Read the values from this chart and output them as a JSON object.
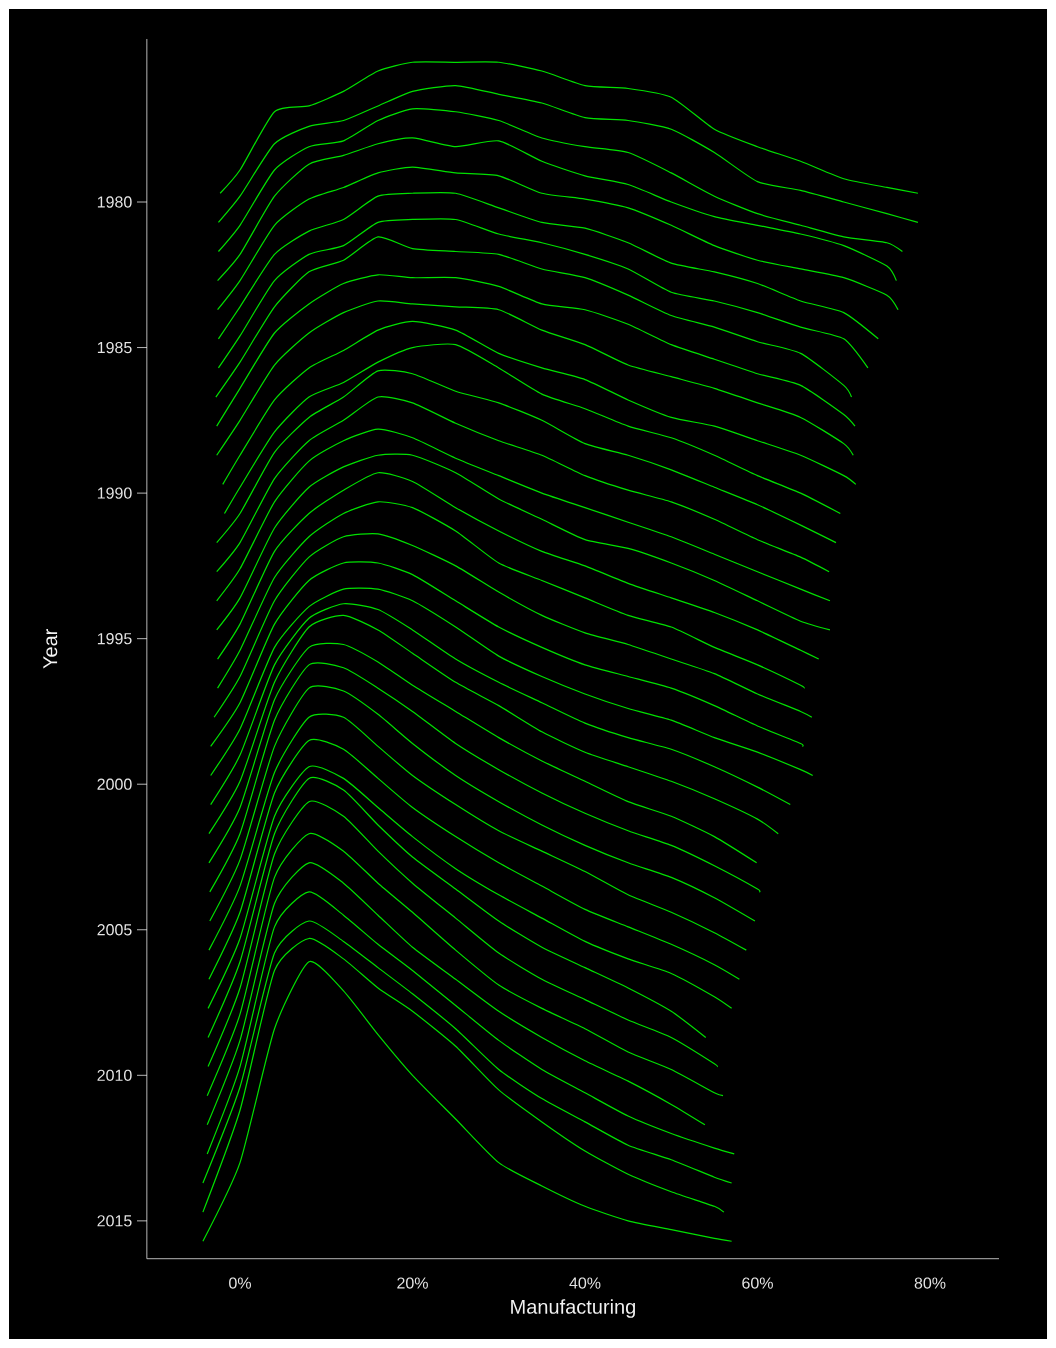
{
  "chart_data": {
    "type": "line",
    "xlabel": "Manufacturing",
    "ylabel": "Year",
    "xticks": [
      {
        "value": 0,
        "label": "0%"
      },
      {
        "value": 20,
        "label": "20%"
      },
      {
        "value": 40,
        "label": "40%"
      },
      {
        "value": 60,
        "label": "60%"
      },
      {
        "value": 80,
        "label": "80%"
      }
    ],
    "yticks": [
      1980,
      1985,
      1990,
      1995,
      2000,
      2005,
      2010,
      2015
    ],
    "xlim": [
      -10.8,
      88
    ],
    "ylim": [
      2016.3,
      1974.4
    ],
    "series": [
      {
        "color": "#00e000",
        "x": [
          -2.3,
          0,
          4,
          8,
          12,
          16,
          20,
          25,
          30,
          35,
          40,
          45,
          50,
          55,
          60,
          65,
          70,
          75,
          78.6
        ],
        "values": [
          1979.7,
          1978.9,
          1976.9,
          1976.7,
          1976.2,
          1975.5,
          1975.2,
          1975.2,
          1975.2,
          1975.5,
          1976.0,
          1976.1,
          1976.4,
          1977.5,
          1978.1,
          1978.6,
          1979.2,
          1979.5,
          1979.7
        ]
      },
      {
        "color": "#00e000",
        "x": [
          -2.5,
          0,
          4,
          8,
          12,
          16,
          20,
          25,
          30,
          35,
          40,
          45,
          50,
          55,
          60,
          65,
          70,
          75,
          78.6
        ],
        "values": [
          1980.7,
          1979.8,
          1978.0,
          1977.4,
          1977.2,
          1976.7,
          1976.2,
          1976.0,
          1976.3,
          1976.6,
          1977.1,
          1977.2,
          1977.5,
          1978.3,
          1979.3,
          1979.6,
          1980.0,
          1980.4,
          1980.7
        ]
      },
      {
        "color": "#00e000",
        "x": [
          -2.5,
          0,
          4,
          8,
          12,
          16,
          20,
          25,
          30,
          35,
          40,
          45,
          50,
          55,
          60,
          65,
          70,
          75,
          76.8
        ],
        "values": [
          1981.7,
          1980.8,
          1978.9,
          1978.1,
          1977.9,
          1977.2,
          1976.8,
          1976.9,
          1977.2,
          1977.8,
          1978.1,
          1978.3,
          1979.0,
          1979.8,
          1980.4,
          1980.8,
          1981.2,
          1981.4,
          1981.7
        ]
      },
      {
        "color": "#00e000",
        "x": [
          -2.6,
          0,
          4,
          8,
          12,
          16,
          20,
          25,
          30,
          35,
          40,
          45,
          50,
          55,
          60,
          65,
          70,
          75,
          76.1
        ],
        "values": [
          1982.7,
          1981.8,
          1979.8,
          1978.7,
          1978.4,
          1978.0,
          1977.8,
          1978.1,
          1977.9,
          1978.6,
          1979.1,
          1979.4,
          1980.0,
          1980.5,
          1980.8,
          1981.1,
          1981.5,
          1982.2,
          1982.7
        ]
      },
      {
        "color": "#00e000",
        "x": [
          -2.6,
          0,
          4,
          8,
          12,
          16,
          20,
          25,
          30,
          35,
          40,
          45,
          50,
          55,
          60,
          65,
          70,
          75,
          76.3
        ],
        "values": [
          1983.7,
          1982.7,
          1980.8,
          1979.9,
          1979.5,
          1979.0,
          1978.8,
          1979.0,
          1979.1,
          1979.7,
          1979.9,
          1980.2,
          1980.8,
          1981.5,
          1982.0,
          1982.3,
          1982.6,
          1983.2,
          1983.7
        ]
      },
      {
        "color": "#00e000",
        "x": [
          -2.5,
          0,
          4,
          8,
          12,
          16,
          20,
          25,
          30,
          35,
          40,
          45,
          50,
          55,
          60,
          65,
          70,
          74.0
        ],
        "values": [
          1984.7,
          1983.6,
          1981.8,
          1981.0,
          1980.6,
          1979.8,
          1979.7,
          1979.7,
          1980.2,
          1980.7,
          1980.9,
          1981.4,
          1982.1,
          1982.4,
          1982.8,
          1983.4,
          1983.8,
          1984.7
        ]
      },
      {
        "color": "#00e000",
        "x": [
          -2.5,
          0,
          4,
          8,
          12,
          16,
          20,
          25,
          30,
          35,
          40,
          45,
          50,
          55,
          60,
          65,
          70,
          72.8
        ],
        "values": [
          1985.7,
          1984.6,
          1982.7,
          1981.8,
          1981.5,
          1980.7,
          1980.6,
          1980.6,
          1981.1,
          1981.4,
          1981.8,
          1982.3,
          1983.1,
          1983.4,
          1983.8,
          1984.3,
          1984.7,
          1985.7
        ]
      },
      {
        "color": "#00e000",
        "x": [
          -2.8,
          0,
          4,
          8,
          12,
          16,
          20,
          25,
          30,
          35,
          40,
          45,
          50,
          55,
          60,
          65,
          70,
          70.9
        ],
        "values": [
          1986.7,
          1985.5,
          1983.6,
          1982.4,
          1982.0,
          1981.2,
          1981.6,
          1981.7,
          1981.8,
          1982.3,
          1982.6,
          1983.2,
          1983.9,
          1984.3,
          1984.8,
          1985.2,
          1986.3,
          1986.7
        ]
      },
      {
        "color": "#00e000",
        "x": [
          -2.7,
          0,
          4,
          8,
          12,
          16,
          20,
          25,
          30,
          35,
          40,
          45,
          50,
          55,
          60,
          65,
          70,
          71.3
        ],
        "values": [
          1987.7,
          1986.4,
          1984.5,
          1983.5,
          1982.8,
          1982.5,
          1982.6,
          1982.6,
          1982.9,
          1983.5,
          1983.7,
          1984.2,
          1984.9,
          1985.4,
          1985.9,
          1986.3,
          1987.3,
          1987.7
        ]
      },
      {
        "color": "#00e000",
        "x": [
          -2.7,
          0,
          4,
          8,
          12,
          16,
          20,
          25,
          30,
          35,
          40,
          45,
          50,
          55,
          60,
          65,
          70,
          71.1
        ],
        "values": [
          1988.7,
          1987.5,
          1985.6,
          1984.5,
          1983.8,
          1983.4,
          1983.5,
          1983.6,
          1983.7,
          1984.4,
          1984.9,
          1985.6,
          1986.0,
          1986.4,
          1986.9,
          1987.4,
          1988.3,
          1988.7
        ]
      },
      {
        "color": "#00e000",
        "x": [
          -2.0,
          0,
          4,
          8,
          12,
          16,
          20,
          25,
          30,
          35,
          40,
          45,
          50,
          55,
          60,
          65,
          70,
          71.4
        ],
        "values": [
          1989.7,
          1988.7,
          1986.8,
          1985.7,
          1985.1,
          1984.4,
          1984.1,
          1984.4,
          1985.2,
          1985.7,
          1986.1,
          1986.8,
          1987.4,
          1987.7,
          1988.2,
          1988.7,
          1989.4,
          1989.7
        ]
      },
      {
        "color": "#00e000",
        "x": [
          -1.8,
          0,
          4,
          8,
          12,
          16,
          20,
          25,
          30,
          35,
          40,
          45,
          50,
          55,
          60,
          65,
          69.6
        ],
        "values": [
          1990.7,
          1989.8,
          1987.9,
          1986.7,
          1986.2,
          1985.5,
          1985.0,
          1984.9,
          1985.7,
          1986.6,
          1987.1,
          1987.7,
          1988.1,
          1988.7,
          1989.4,
          1990.0,
          1990.7
        ]
      },
      {
        "color": "#00e000",
        "x": [
          -2.7,
          0,
          4,
          8,
          12,
          16,
          20,
          25,
          30,
          35,
          40,
          45,
          50,
          55,
          60,
          65,
          69.1
        ],
        "values": [
          1991.7,
          1990.7,
          1988.6,
          1987.4,
          1986.7,
          1985.8,
          1985.9,
          1986.5,
          1986.9,
          1987.5,
          1988.3,
          1988.7,
          1989.2,
          1989.8,
          1990.4,
          1991.1,
          1991.7
        ]
      },
      {
        "color": "#00e000",
        "x": [
          -2.7,
          0,
          4,
          8,
          12,
          16,
          20,
          25,
          30,
          35,
          40,
          45,
          50,
          55,
          60,
          65,
          68.3
        ],
        "values": [
          1992.7,
          1991.7,
          1989.5,
          1988.2,
          1987.5,
          1986.7,
          1986.9,
          1987.6,
          1988.2,
          1988.7,
          1989.4,
          1989.9,
          1990.3,
          1990.9,
          1991.6,
          1992.2,
          1992.7
        ]
      },
      {
        "color": "#00e000",
        "x": [
          -2.7,
          0,
          4,
          8,
          12,
          16,
          20,
          25,
          30,
          35,
          40,
          45,
          50,
          55,
          60,
          65,
          68.4
        ],
        "values": [
          1993.7,
          1992.6,
          1990.3,
          1988.9,
          1988.2,
          1987.8,
          1988.1,
          1988.8,
          1989.4,
          1990.0,
          1990.5,
          1991.0,
          1991.5,
          1992.1,
          1992.7,
          1993.3,
          1993.7
        ]
      },
      {
        "color": "#00e000",
        "x": [
          -2.7,
          0,
          4,
          8,
          12,
          16,
          20,
          25,
          30,
          35,
          40,
          45,
          50,
          55,
          60,
          65,
          68.4
        ],
        "values": [
          1994.7,
          1993.6,
          1991.2,
          1989.8,
          1989.1,
          1988.7,
          1988.7,
          1989.3,
          1990.2,
          1990.9,
          1991.6,
          1991.9,
          1992.4,
          1993.0,
          1993.7,
          1994.4,
          1994.7
        ]
      },
      {
        "color": "#00e000",
        "x": [
          -2.6,
          0,
          4,
          8,
          12,
          16,
          20,
          25,
          30,
          35,
          40,
          45,
          50,
          55,
          60,
          65,
          67.1
        ],
        "values": [
          1995.7,
          1994.5,
          1992.0,
          1990.7,
          1989.9,
          1989.3,
          1989.6,
          1990.5,
          1991.3,
          1992.0,
          1992.5,
          1993.1,
          1993.6,
          1994.1,
          1994.7,
          1995.4,
          1995.7
        ]
      },
      {
        "color": "#00e000",
        "x": [
          -2.6,
          0,
          4,
          8,
          12,
          16,
          20,
          25,
          30,
          35,
          40,
          45,
          50,
          55,
          60,
          65,
          65.4
        ],
        "values": [
          1996.7,
          1995.4,
          1992.9,
          1991.5,
          1990.7,
          1990.3,
          1990.5,
          1991.3,
          1992.4,
          1993.0,
          1993.6,
          1994.2,
          1994.6,
          1995.3,
          1995.9,
          1996.6,
          1996.7
        ]
      },
      {
        "color": "#00e000",
        "x": [
          -3.0,
          0,
          4,
          8,
          12,
          16,
          20,
          25,
          30,
          35,
          40,
          45,
          50,
          55,
          60,
          65,
          66.3
        ],
        "values": [
          1997.7,
          1996.3,
          1993.7,
          1992.2,
          1991.5,
          1991.4,
          1991.8,
          1992.5,
          1993.4,
          1994.2,
          1994.8,
          1995.2,
          1995.7,
          1996.2,
          1996.9,
          1997.5,
          1997.7
        ]
      },
      {
        "color": "#00e000",
        "x": [
          -3.4,
          0,
          4,
          8,
          12,
          16,
          20,
          25,
          30,
          35,
          40,
          45,
          50,
          55,
          60,
          65,
          65.2
        ],
        "values": [
          1998.7,
          1997.2,
          1994.5,
          1993.0,
          1992.4,
          1992.4,
          1992.8,
          1993.7,
          1994.6,
          1995.3,
          1995.9,
          1996.3,
          1996.7,
          1997.3,
          1998.0,
          1998.6,
          1998.7
        ]
      },
      {
        "color": "#00e000",
        "x": [
          -3.4,
          0,
          4,
          8,
          12,
          16,
          20,
          25,
          30,
          35,
          40,
          45,
          50,
          55,
          60,
          65,
          66.4
        ],
        "values": [
          1999.7,
          1998.1,
          1995.3,
          1993.9,
          1993.3,
          1993.3,
          1993.7,
          1994.6,
          1995.6,
          1996.3,
          1996.9,
          1997.4,
          1997.8,
          1998.4,
          1998.9,
          1999.5,
          1999.7
        ]
      },
      {
        "color": "#00e000",
        "x": [
          -3.4,
          0,
          4,
          8,
          12,
          16,
          20,
          25,
          30,
          35,
          40,
          45,
          50,
          55,
          60,
          63.8
        ],
        "values": [
          2000.7,
          1999.0,
          1995.9,
          1994.3,
          1993.8,
          1994.0,
          1994.7,
          1995.7,
          1996.5,
          1997.2,
          1997.9,
          1998.4,
          1998.8,
          1999.4,
          2000.1,
          2000.7
        ]
      },
      {
        "color": "#00e000",
        "x": [
          -3.6,
          0,
          4,
          8,
          12,
          16,
          20,
          25,
          30,
          35,
          40,
          45,
          50,
          55,
          60,
          62.4
        ],
        "values": [
          2001.7,
          1999.9,
          1996.5,
          1994.6,
          1994.2,
          1994.7,
          1995.5,
          1996.5,
          1997.3,
          1998.2,
          1998.9,
          1999.4,
          1999.9,
          2000.5,
          2001.2,
          2001.7
        ]
      },
      {
        "color": "#00e000",
        "x": [
          -3.6,
          0,
          4,
          8,
          12,
          16,
          20,
          25,
          30,
          35,
          40,
          45,
          50,
          55,
          59.9
        ],
        "values": [
          2002.7,
          2000.8,
          1997.1,
          1995.3,
          1995.2,
          1995.8,
          1996.6,
          1997.5,
          1998.4,
          1999.2,
          1999.9,
          2000.6,
          2001.1,
          2001.8,
          2002.7
        ]
      },
      {
        "color": "#00e000",
        "x": [
          -3.5,
          0,
          4,
          8,
          12,
          16,
          20,
          25,
          30,
          35,
          40,
          45,
          50,
          55,
          60,
          60.2
        ],
        "values": [
          2003.7,
          2001.7,
          1997.8,
          1995.9,
          1996.0,
          1996.7,
          1997.5,
          1998.6,
          1999.5,
          2000.3,
          2001.0,
          2001.6,
          2002.1,
          2002.8,
          2003.6,
          2003.7
        ]
      },
      {
        "color": "#00e000",
        "x": [
          -3.5,
          0,
          4,
          8,
          12,
          16,
          20,
          25,
          30,
          35,
          40,
          45,
          50,
          55,
          59.7
        ],
        "values": [
          2004.7,
          2002.6,
          1998.7,
          1996.7,
          1996.8,
          1997.6,
          1998.6,
          1999.7,
          2000.6,
          2001.4,
          2002.1,
          2002.7,
          2003.2,
          2003.9,
          2004.7
        ]
      },
      {
        "color": "#00e000",
        "x": [
          -3.6,
          0,
          4,
          8,
          12,
          16,
          20,
          25,
          30,
          35,
          40,
          45,
          50,
          55,
          58.7
        ],
        "values": [
          2005.7,
          2003.5,
          1999.6,
          1997.7,
          1997.7,
          1998.7,
          1999.7,
          2000.7,
          2001.6,
          2002.3,
          2003.0,
          2003.8,
          2004.4,
          2005.1,
          2005.7
        ]
      },
      {
        "color": "#00e000",
        "x": [
          -3.6,
          0,
          4,
          8,
          12,
          16,
          20,
          25,
          30,
          35,
          40,
          45,
          50,
          55,
          57.9
        ],
        "values": [
          2006.7,
          2004.4,
          2000.3,
          1998.5,
          1998.8,
          1999.8,
          2000.8,
          2001.8,
          2002.7,
          2003.5,
          2004.3,
          2004.9,
          2005.5,
          2006.2,
          2006.7
        ]
      },
      {
        "color": "#00e000",
        "x": [
          -3.7,
          0,
          4,
          8,
          12,
          16,
          20,
          25,
          30,
          35,
          40,
          45,
          50,
          55,
          57.0
        ],
        "values": [
          2007.7,
          2005.3,
          2001.1,
          1999.4,
          1999.8,
          2000.8,
          2001.8,
          2002.9,
          2003.8,
          2004.6,
          2005.4,
          2006.0,
          2006.5,
          2007.3,
          2007.7
        ]
      },
      {
        "color": "#00e000",
        "x": [
          -3.7,
          0,
          4,
          8,
          12,
          16,
          20,
          25,
          30,
          35,
          40,
          45,
          50,
          54.0
        ],
        "values": [
          2008.7,
          2006.1,
          2001.7,
          1999.8,
          2000.2,
          2001.4,
          2002.5,
          2003.6,
          2004.7,
          2005.6,
          2006.3,
          2007.0,
          2007.8,
          2008.7
        ]
      },
      {
        "color": "#00e000",
        "x": [
          -3.7,
          0,
          4,
          8,
          12,
          16,
          20,
          25,
          30,
          35,
          40,
          45,
          50,
          55,
          55.3
        ],
        "values": [
          2009.7,
          2007.0,
          2002.4,
          2000.6,
          2001.1,
          2002.3,
          2003.4,
          2004.6,
          2005.8,
          2006.7,
          2007.4,
          2008.1,
          2008.7,
          2009.6,
          2009.7
        ]
      },
      {
        "color": "#00e000",
        "x": [
          -3.8,
          0,
          4,
          8,
          12,
          16,
          20,
          25,
          30,
          35,
          40,
          45,
          50,
          55,
          56.0
        ],
        "values": [
          2010.7,
          2007.9,
          2003.2,
          2001.7,
          2002.3,
          2003.4,
          2004.4,
          2005.7,
          2006.9,
          2007.7,
          2008.4,
          2009.2,
          2009.8,
          2010.6,
          2010.7
        ]
      },
      {
        "color": "#00e000",
        "x": [
          -3.8,
          0,
          4,
          8,
          12,
          16,
          20,
          25,
          30,
          35,
          40,
          45,
          50,
          53.9
        ],
        "values": [
          2011.7,
          2008.8,
          2004.1,
          2002.7,
          2003.4,
          2004.5,
          2005.6,
          2006.7,
          2007.8,
          2008.7,
          2009.5,
          2010.2,
          2011.0,
          2011.7
        ]
      },
      {
        "color": "#00e000",
        "x": [
          -3.8,
          0,
          4,
          8,
          12,
          16,
          20,
          25,
          30,
          35,
          40,
          45,
          50,
          55,
          57.3
        ],
        "values": [
          2012.7,
          2009.7,
          2004.9,
          2003.7,
          2004.5,
          2005.5,
          2006.4,
          2007.6,
          2008.8,
          2009.8,
          2010.6,
          2011.4,
          2012.0,
          2012.5,
          2012.7
        ]
      },
      {
        "color": "#00e000",
        "x": [
          -4.3,
          0,
          4,
          8,
          12,
          16,
          20,
          25,
          30,
          35,
          40,
          45,
          50,
          55,
          57.0
        ],
        "values": [
          2013.7,
          2010.4,
          2005.8,
          2004.7,
          2005.4,
          2006.3,
          2007.2,
          2008.4,
          2009.8,
          2010.8,
          2011.6,
          2012.4,
          2012.9,
          2013.5,
          2013.7
        ]
      },
      {
        "color": "#00e000",
        "x": [
          -4.3,
          0,
          4,
          8,
          12,
          16,
          20,
          25,
          30,
          35,
          40,
          45,
          50,
          55,
          56.1
        ],
        "values": [
          2014.7,
          2011.2,
          2006.4,
          2005.3,
          2006.0,
          2007.0,
          2007.8,
          2009.0,
          2010.5,
          2011.6,
          2012.6,
          2013.4,
          2014.0,
          2014.5,
          2014.7
        ]
      },
      {
        "color": "#00e000",
        "x": [
          -4.3,
          0,
          4,
          8,
          12,
          16,
          20,
          25,
          30,
          35,
          40,
          45,
          50,
          55,
          57.0
        ],
        "values": [
          2015.7,
          2013.0,
          2008.4,
          2006.1,
          2007.1,
          2008.6,
          2010.0,
          2011.5,
          2013.0,
          2013.8,
          2014.5,
          2015.0,
          2015.3,
          2015.6,
          2015.7
        ]
      }
    ]
  }
}
